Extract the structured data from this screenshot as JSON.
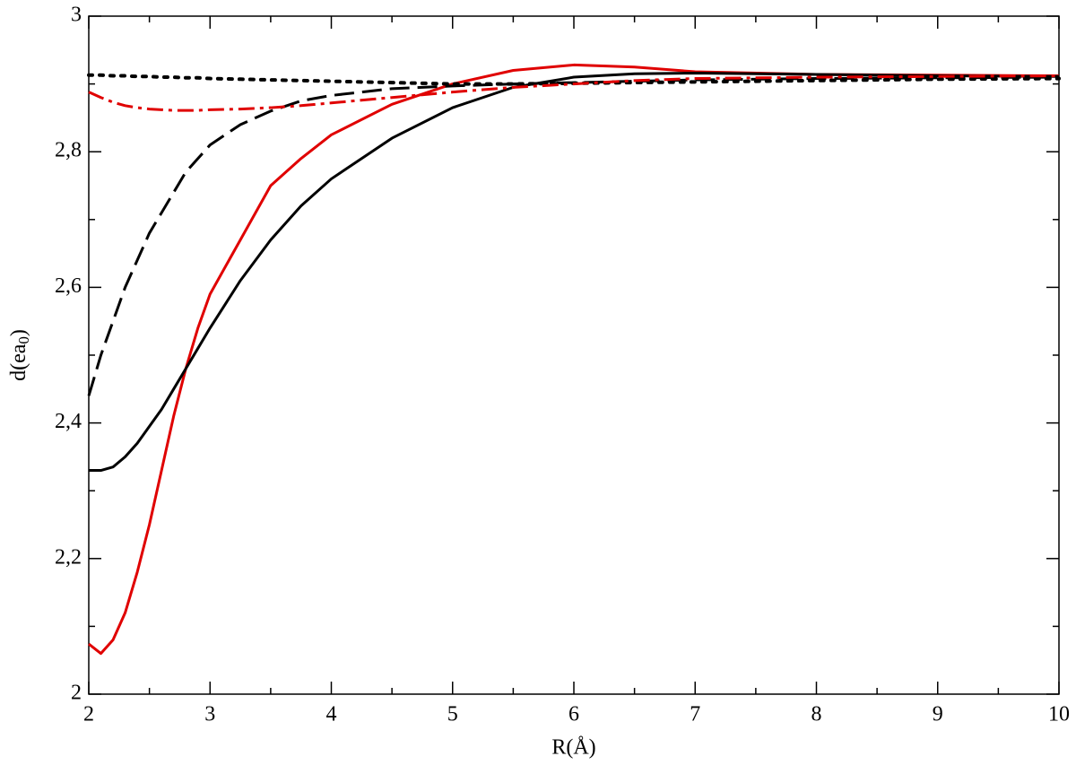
{
  "chart_data": {
    "type": "line",
    "xlabel": "R(Å)",
    "ylabel": {
      "text": "d(ea",
      "subscript": "0",
      "close": ")"
    },
    "x": [
      2,
      2.1,
      2.2,
      2.3,
      2.4,
      2.5,
      2.6,
      2.7,
      2.8,
      2.9,
      3,
      3.25,
      3.5,
      3.75,
      4,
      4.5,
      5,
      5.5,
      6,
      6.5,
      7,
      8,
      9,
      10
    ],
    "series": [
      {
        "color": "#e00000",
        "dash": "solid",
        "values": [
          2.074,
          2.06,
          2.08,
          2.12,
          2.18,
          2.25,
          2.33,
          2.41,
          2.48,
          2.54,
          2.59,
          2.67,
          2.75,
          2.79,
          2.825,
          2.87,
          2.9,
          2.92,
          2.928,
          2.925,
          2.918,
          2.914,
          2.913,
          2.912
        ]
      },
      {
        "color": "#000000",
        "dash": "solid",
        "values": [
          2.33,
          2.33,
          2.335,
          2.35,
          2.37,
          2.395,
          2.42,
          2.45,
          2.48,
          2.51,
          2.54,
          2.61,
          2.67,
          2.72,
          2.76,
          2.82,
          2.865,
          2.895,
          2.91,
          2.915,
          2.916,
          2.914,
          2.912,
          2.911
        ]
      },
      {
        "color": "#000000",
        "dash": "dashed",
        "values": [
          2.44,
          2.5,
          2.55,
          2.6,
          2.64,
          2.68,
          2.71,
          2.74,
          2.77,
          2.79,
          2.81,
          2.84,
          2.86,
          2.875,
          2.883,
          2.893,
          2.897,
          2.9,
          2.902,
          2.904,
          2.906,
          2.908,
          2.909,
          2.91
        ]
      },
      {
        "color": "#000000",
        "dash": "dotted",
        "values": [
          2.913,
          2.913,
          2.912,
          2.912,
          2.911,
          2.911,
          2.91,
          2.91,
          2.909,
          2.909,
          2.908,
          2.907,
          2.906,
          2.905,
          2.904,
          2.902,
          2.9,
          2.9,
          2.901,
          2.902,
          2.903,
          2.905,
          2.907,
          2.908
        ]
      },
      {
        "color": "#e00000",
        "dash": "dashdot",
        "values": [
          2.888,
          2.88,
          2.873,
          2.868,
          2.865,
          2.863,
          2.862,
          2.861,
          2.861,
          2.861,
          2.862,
          2.863,
          2.865,
          2.868,
          2.872,
          2.88,
          2.888,
          2.895,
          2.9,
          2.905,
          2.908,
          2.91,
          2.911,
          2.912
        ]
      }
    ],
    "xlim": [
      2,
      10
    ],
    "xticks": [
      2,
      3,
      4,
      5,
      6,
      7,
      8,
      9,
      10
    ],
    "ylim": [
      2,
      3
    ],
    "yticks": [
      2,
      {
        "value": 2.2,
        "label": "2,2"
      },
      {
        "value": 2.4,
        "label": "2,4"
      },
      {
        "value": 2.6,
        "label": "2,6"
      },
      {
        "value": 2.8,
        "label": "2,8"
      },
      3
    ],
    "grid": false
  }
}
